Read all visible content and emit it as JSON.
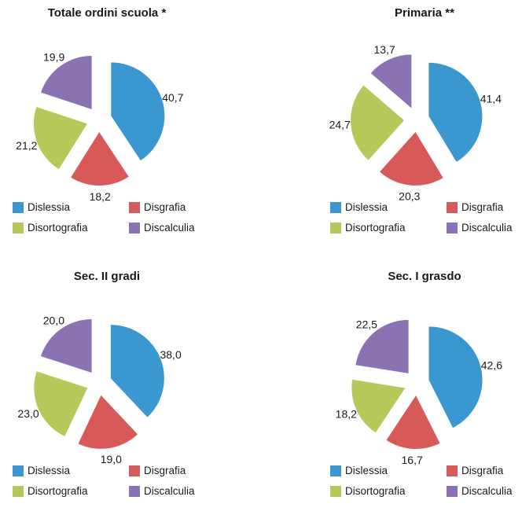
{
  "chart_data": [
    {
      "type": "pie",
      "title": "Totale ordini scuola *",
      "categories": [
        "Dislessia",
        "Disgrafia",
        "Disortografia",
        "Discalculia"
      ],
      "values": [
        40.7,
        18.2,
        21.2,
        19.9
      ],
      "value_labels": [
        "40,7",
        "18,2",
        "21,2",
        "19,9"
      ],
      "legend_position": "bottom"
    },
    {
      "type": "pie",
      "title": "Primaria **",
      "categories": [
        "Dislessia",
        "Disgrafia",
        "Disortografia",
        "Discalculia"
      ],
      "values": [
        41.4,
        20.3,
        24.7,
        13.7
      ],
      "value_labels": [
        "41,4",
        "20,3",
        "24,7",
        "13,7"
      ],
      "legend_position": "bottom"
    },
    {
      "type": "pie",
      "title": "Sec. II gradi",
      "categories": [
        "Dislessia",
        "Disgrafia",
        "Disortografia",
        "Discalculia"
      ],
      "values": [
        38.0,
        19.0,
        23.0,
        20.0
      ],
      "value_labels": [
        "38,0",
        "19,0",
        "23,0",
        "20,0"
      ],
      "legend_position": "bottom"
    },
    {
      "type": "pie",
      "title": "Sec. I grasdo",
      "categories": [
        "Dislessia",
        "Disgrafia",
        "Disortografia",
        "Discalculia"
      ],
      "values": [
        42.6,
        16.7,
        18.2,
        22.5
      ],
      "value_labels": [
        "42,6",
        "16,7",
        "18,2",
        "22,5"
      ],
      "legend_position": "bottom"
    }
  ],
  "colors": {
    "Dislessia": "#3a97d0",
    "Disgrafia": "#d85a58",
    "Disortografia": "#b5c95a",
    "Discalculia": "#8a72b3"
  }
}
